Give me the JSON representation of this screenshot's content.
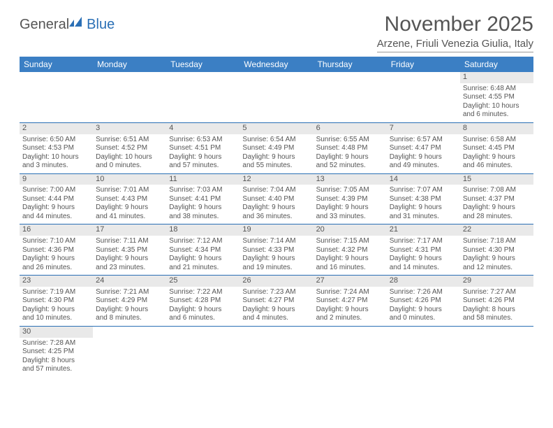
{
  "brand": {
    "general": "General",
    "blue": "Blue"
  },
  "title": "November 2025",
  "location": "Arzene, Friuli Venezia Giulia, Italy",
  "colors": {
    "header_bg": "#3b7fc4",
    "header_text": "#ffffff",
    "cell_border": "#2a6fb5",
    "daynum_bg": "#e9e9e9",
    "text": "#555555"
  },
  "day_headers": [
    "Sunday",
    "Monday",
    "Tuesday",
    "Wednesday",
    "Thursday",
    "Friday",
    "Saturday"
  ],
  "weeks": [
    [
      null,
      null,
      null,
      null,
      null,
      null,
      {
        "n": "1",
        "sr": "Sunrise: 6:48 AM",
        "ss": "Sunset: 4:55 PM",
        "d1": "Daylight: 10 hours",
        "d2": "and 6 minutes."
      }
    ],
    [
      {
        "n": "2",
        "sr": "Sunrise: 6:50 AM",
        "ss": "Sunset: 4:53 PM",
        "d1": "Daylight: 10 hours",
        "d2": "and 3 minutes."
      },
      {
        "n": "3",
        "sr": "Sunrise: 6:51 AM",
        "ss": "Sunset: 4:52 PM",
        "d1": "Daylight: 10 hours",
        "d2": "and 0 minutes."
      },
      {
        "n": "4",
        "sr": "Sunrise: 6:53 AM",
        "ss": "Sunset: 4:51 PM",
        "d1": "Daylight: 9 hours",
        "d2": "and 57 minutes."
      },
      {
        "n": "5",
        "sr": "Sunrise: 6:54 AM",
        "ss": "Sunset: 4:49 PM",
        "d1": "Daylight: 9 hours",
        "d2": "and 55 minutes."
      },
      {
        "n": "6",
        "sr": "Sunrise: 6:55 AM",
        "ss": "Sunset: 4:48 PM",
        "d1": "Daylight: 9 hours",
        "d2": "and 52 minutes."
      },
      {
        "n": "7",
        "sr": "Sunrise: 6:57 AM",
        "ss": "Sunset: 4:47 PM",
        "d1": "Daylight: 9 hours",
        "d2": "and 49 minutes."
      },
      {
        "n": "8",
        "sr": "Sunrise: 6:58 AM",
        "ss": "Sunset: 4:45 PM",
        "d1": "Daylight: 9 hours",
        "d2": "and 46 minutes."
      }
    ],
    [
      {
        "n": "9",
        "sr": "Sunrise: 7:00 AM",
        "ss": "Sunset: 4:44 PM",
        "d1": "Daylight: 9 hours",
        "d2": "and 44 minutes."
      },
      {
        "n": "10",
        "sr": "Sunrise: 7:01 AM",
        "ss": "Sunset: 4:43 PM",
        "d1": "Daylight: 9 hours",
        "d2": "and 41 minutes."
      },
      {
        "n": "11",
        "sr": "Sunrise: 7:03 AM",
        "ss": "Sunset: 4:41 PM",
        "d1": "Daylight: 9 hours",
        "d2": "and 38 minutes."
      },
      {
        "n": "12",
        "sr": "Sunrise: 7:04 AM",
        "ss": "Sunset: 4:40 PM",
        "d1": "Daylight: 9 hours",
        "d2": "and 36 minutes."
      },
      {
        "n": "13",
        "sr": "Sunrise: 7:05 AM",
        "ss": "Sunset: 4:39 PM",
        "d1": "Daylight: 9 hours",
        "d2": "and 33 minutes."
      },
      {
        "n": "14",
        "sr": "Sunrise: 7:07 AM",
        "ss": "Sunset: 4:38 PM",
        "d1": "Daylight: 9 hours",
        "d2": "and 31 minutes."
      },
      {
        "n": "15",
        "sr": "Sunrise: 7:08 AM",
        "ss": "Sunset: 4:37 PM",
        "d1": "Daylight: 9 hours",
        "d2": "and 28 minutes."
      }
    ],
    [
      {
        "n": "16",
        "sr": "Sunrise: 7:10 AM",
        "ss": "Sunset: 4:36 PM",
        "d1": "Daylight: 9 hours",
        "d2": "and 26 minutes."
      },
      {
        "n": "17",
        "sr": "Sunrise: 7:11 AM",
        "ss": "Sunset: 4:35 PM",
        "d1": "Daylight: 9 hours",
        "d2": "and 23 minutes."
      },
      {
        "n": "18",
        "sr": "Sunrise: 7:12 AM",
        "ss": "Sunset: 4:34 PM",
        "d1": "Daylight: 9 hours",
        "d2": "and 21 minutes."
      },
      {
        "n": "19",
        "sr": "Sunrise: 7:14 AM",
        "ss": "Sunset: 4:33 PM",
        "d1": "Daylight: 9 hours",
        "d2": "and 19 minutes."
      },
      {
        "n": "20",
        "sr": "Sunrise: 7:15 AM",
        "ss": "Sunset: 4:32 PM",
        "d1": "Daylight: 9 hours",
        "d2": "and 16 minutes."
      },
      {
        "n": "21",
        "sr": "Sunrise: 7:17 AM",
        "ss": "Sunset: 4:31 PM",
        "d1": "Daylight: 9 hours",
        "d2": "and 14 minutes."
      },
      {
        "n": "22",
        "sr": "Sunrise: 7:18 AM",
        "ss": "Sunset: 4:30 PM",
        "d1": "Daylight: 9 hours",
        "d2": "and 12 minutes."
      }
    ],
    [
      {
        "n": "23",
        "sr": "Sunrise: 7:19 AM",
        "ss": "Sunset: 4:30 PM",
        "d1": "Daylight: 9 hours",
        "d2": "and 10 minutes."
      },
      {
        "n": "24",
        "sr": "Sunrise: 7:21 AM",
        "ss": "Sunset: 4:29 PM",
        "d1": "Daylight: 9 hours",
        "d2": "and 8 minutes."
      },
      {
        "n": "25",
        "sr": "Sunrise: 7:22 AM",
        "ss": "Sunset: 4:28 PM",
        "d1": "Daylight: 9 hours",
        "d2": "and 6 minutes."
      },
      {
        "n": "26",
        "sr": "Sunrise: 7:23 AM",
        "ss": "Sunset: 4:27 PM",
        "d1": "Daylight: 9 hours",
        "d2": "and 4 minutes."
      },
      {
        "n": "27",
        "sr": "Sunrise: 7:24 AM",
        "ss": "Sunset: 4:27 PM",
        "d1": "Daylight: 9 hours",
        "d2": "and 2 minutes."
      },
      {
        "n": "28",
        "sr": "Sunrise: 7:26 AM",
        "ss": "Sunset: 4:26 PM",
        "d1": "Daylight: 9 hours",
        "d2": "and 0 minutes."
      },
      {
        "n": "29",
        "sr": "Sunrise: 7:27 AM",
        "ss": "Sunset: 4:26 PM",
        "d1": "Daylight: 8 hours",
        "d2": "and 58 minutes."
      }
    ],
    [
      {
        "n": "30",
        "sr": "Sunrise: 7:28 AM",
        "ss": "Sunset: 4:25 PM",
        "d1": "Daylight: 8 hours",
        "d2": "and 57 minutes."
      },
      null,
      null,
      null,
      null,
      null,
      null
    ]
  ]
}
